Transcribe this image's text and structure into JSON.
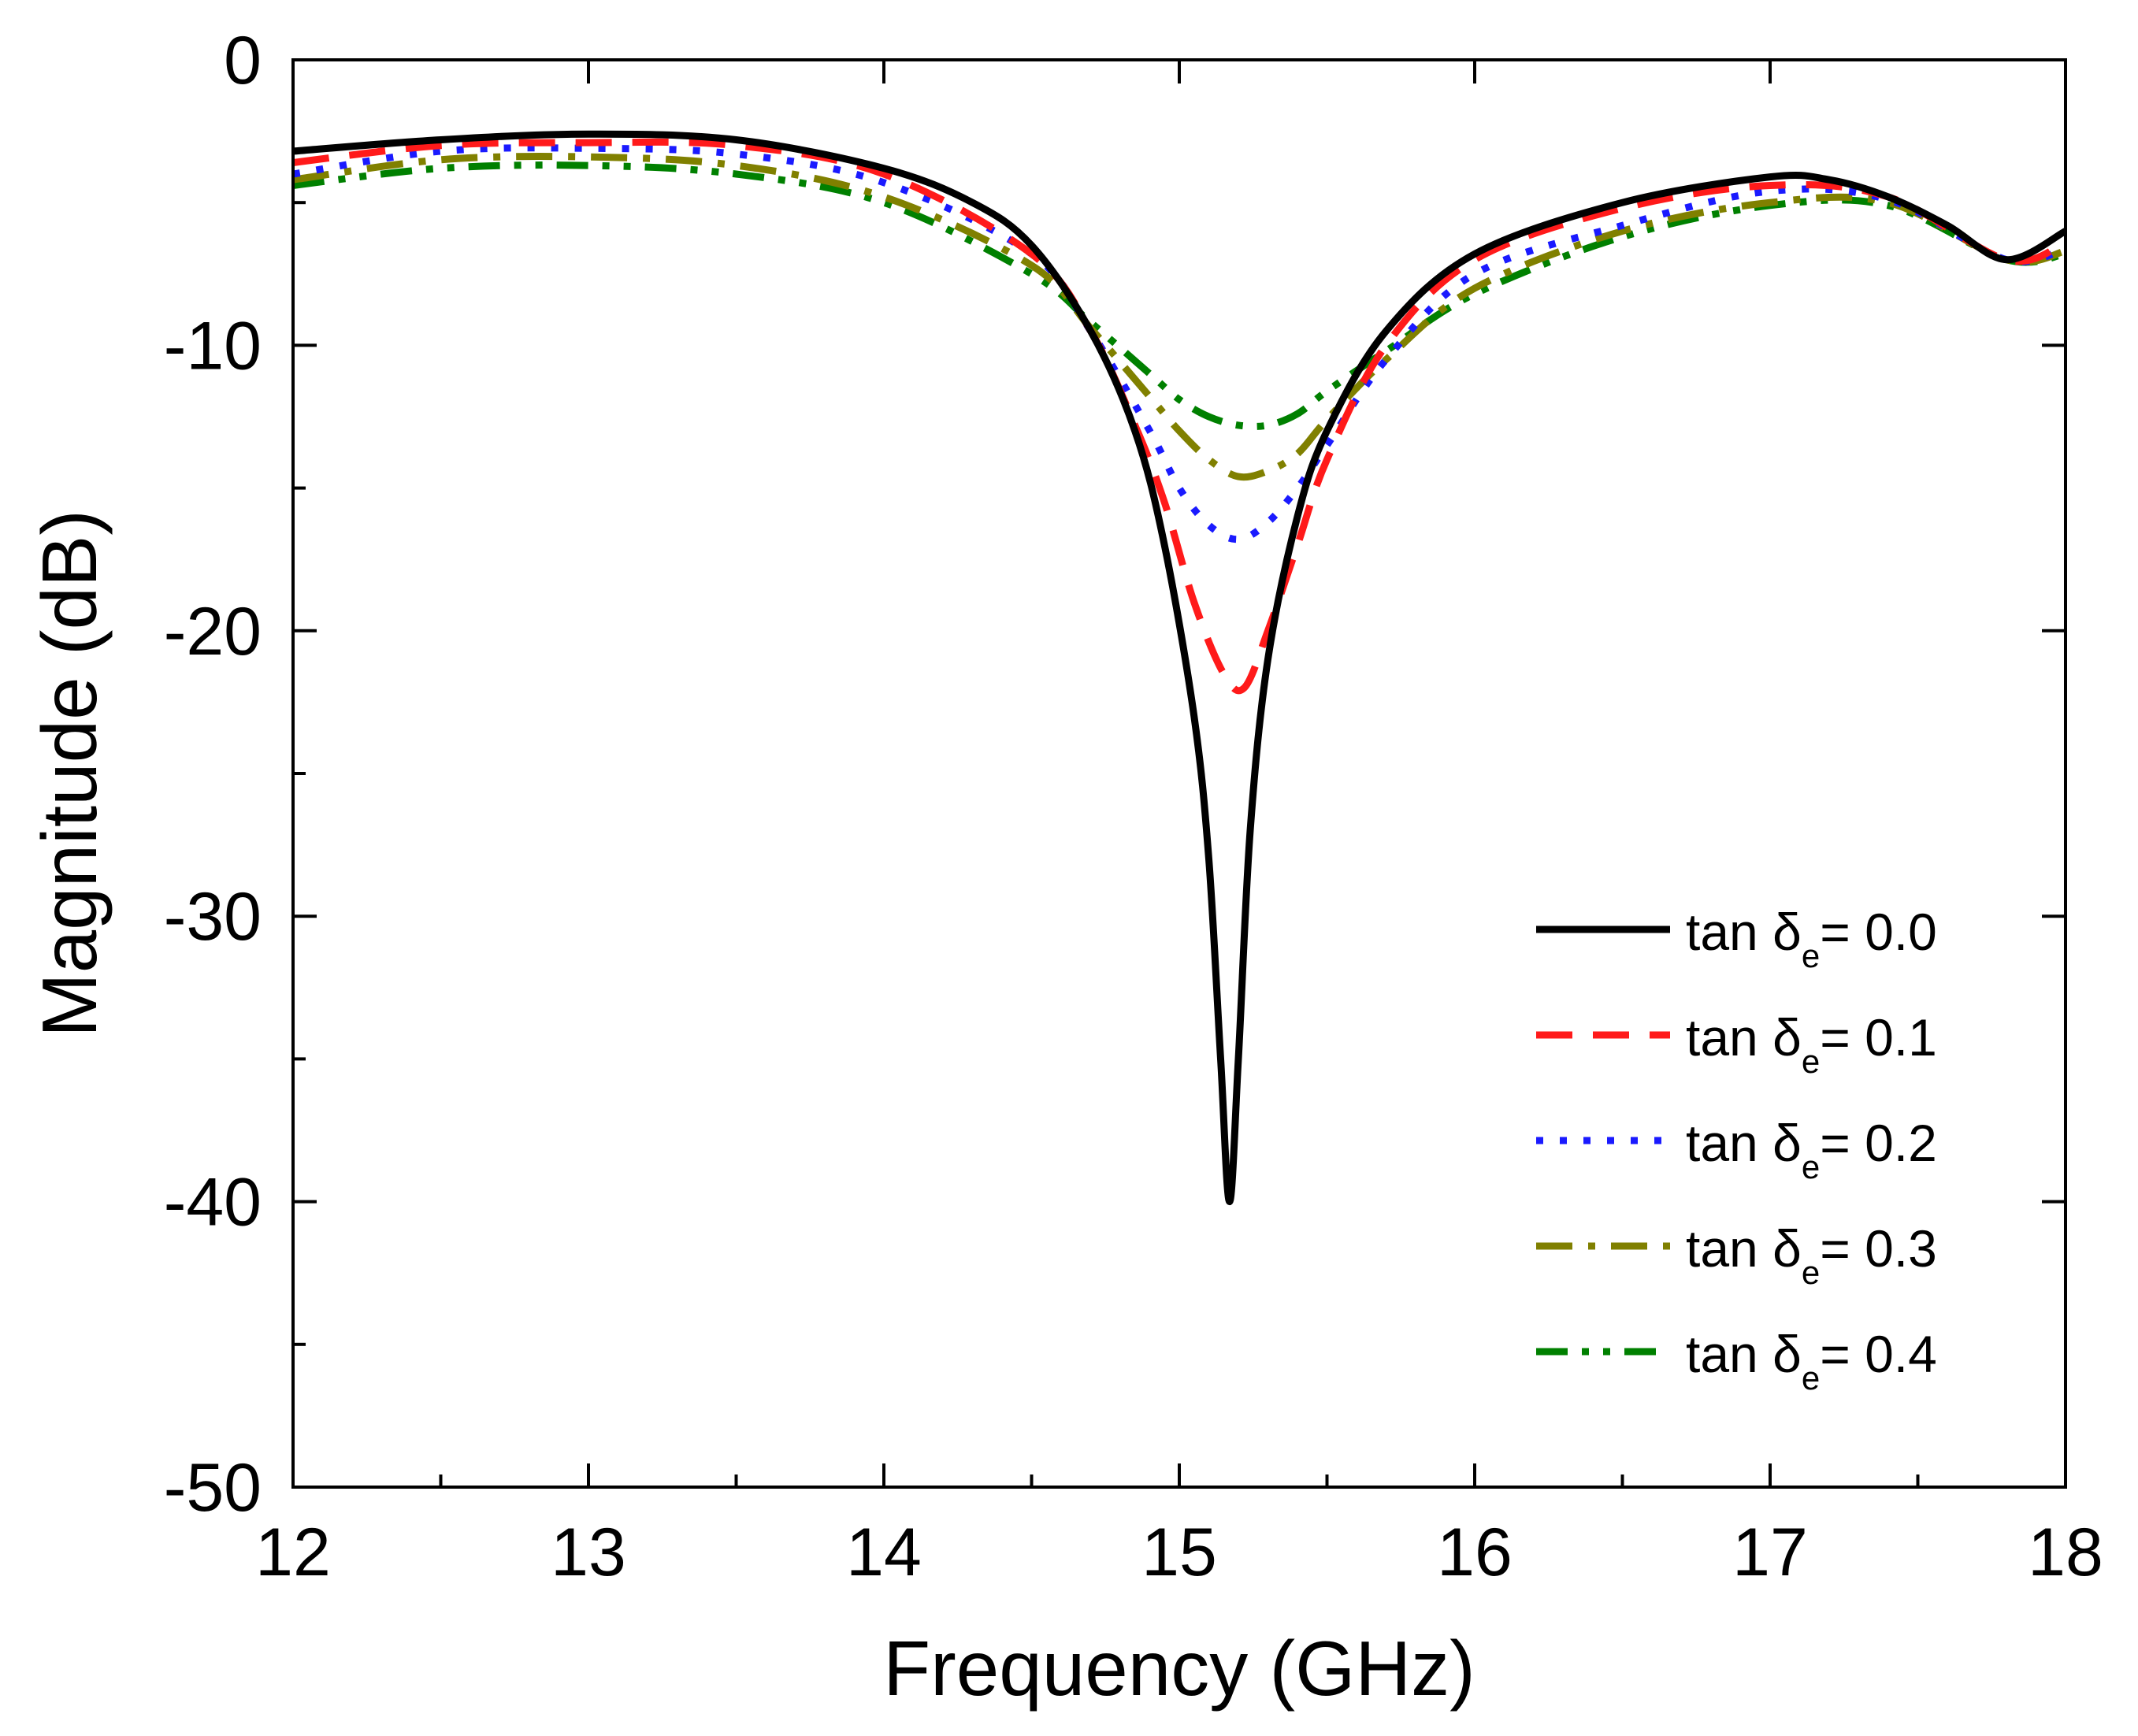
{
  "chart_data": {
    "type": "line",
    "title": "",
    "xlabel": "Frequency (GHz)",
    "ylabel": "Magnitude (dB)",
    "xlim": [
      12,
      18
    ],
    "ylim": [
      -50,
      0
    ],
    "xticks": [
      12,
      13,
      14,
      15,
      16,
      17,
      18
    ],
    "yticks": [
      0,
      -10,
      -20,
      -30,
      -40,
      -50
    ],
    "xtick_labels": [
      "12",
      "13",
      "14",
      "15",
      "16",
      "17",
      "18"
    ],
    "ytick_labels": [
      "0",
      "-10",
      "-20",
      "-30",
      "-40",
      "-50"
    ],
    "grid": false,
    "legend_position": "bottom-right",
    "series": [
      {
        "name": "tan δe= 0.0",
        "label_main": "tan δ",
        "label_sub": "e",
        "label_value": "= 0.0",
        "color": "#000000",
        "style": "solid",
        "x": [
          12.0,
          12.5,
          13.0,
          13.5,
          14.0,
          14.3,
          14.5,
          14.7,
          14.85,
          14.95,
          15.05,
          15.1,
          15.14,
          15.17,
          15.2,
          15.24,
          15.3,
          15.4,
          15.5,
          15.7,
          16.0,
          16.5,
          17.0,
          17.2,
          17.4,
          17.6,
          17.8,
          18.0
        ],
        "y": [
          -3.2,
          -2.8,
          -2.6,
          -2.8,
          -3.8,
          -5.0,
          -6.5,
          -9.5,
          -13.0,
          -17.0,
          -23.0,
          -28.0,
          -35.0,
          -40.0,
          -35.0,
          -27.0,
          -21.0,
          -16.0,
          -13.0,
          -9.5,
          -6.8,
          -5.0,
          -4.1,
          -4.2,
          -4.8,
          -5.8,
          -7.0,
          -6.0
        ]
      },
      {
        "name": "tan δe= 0.1",
        "label_main": "tan δ",
        "label_sub": "e",
        "label_value": "= 0.1",
        "color": "#ff1a1a",
        "style": "dashed",
        "x": [
          12.0,
          12.5,
          13.0,
          13.5,
          14.0,
          14.5,
          14.7,
          14.85,
          14.95,
          15.05,
          15.15,
          15.22,
          15.3,
          15.4,
          15.5,
          15.7,
          16.0,
          16.5,
          17.0,
          17.4,
          17.8,
          18.0
        ],
        "y": [
          -3.6,
          -3.0,
          -2.9,
          -3.0,
          -4.0,
          -6.8,
          -9.5,
          -12.8,
          -15.5,
          -19.0,
          -21.5,
          -22.0,
          -20.0,
          -17.0,
          -14.0,
          -10.0,
          -7.0,
          -5.2,
          -4.4,
          -4.8,
          -7.0,
          -6.4
        ]
      },
      {
        "name": "tan δe= 0.2",
        "label_main": "tan δ",
        "label_sub": "e",
        "label_value": "= 0.2",
        "color": "#1a1aff",
        "style": "dotted",
        "x": [
          12.0,
          12.5,
          13.0,
          13.5,
          14.0,
          14.5,
          14.7,
          14.9,
          15.0,
          15.1,
          15.2,
          15.3,
          15.4,
          15.5,
          15.7,
          16.0,
          16.5,
          17.0,
          17.4,
          17.8,
          18.0
        ],
        "y": [
          -4.0,
          -3.2,
          -3.1,
          -3.3,
          -4.3,
          -6.8,
          -9.5,
          -13.0,
          -15.0,
          -16.3,
          -16.8,
          -16.2,
          -15.0,
          -13.5,
          -10.5,
          -7.5,
          -5.8,
          -4.6,
          -4.9,
          -7.0,
          -6.6
        ]
      },
      {
        "name": "tan δe= 0.3",
        "label_main": "tan δ",
        "label_sub": "e",
        "label_value": "= 0.3",
        "color": "#808000",
        "style": "dashdot",
        "x": [
          12.0,
          12.5,
          13.0,
          13.5,
          14.0,
          14.5,
          14.7,
          14.9,
          15.0,
          15.1,
          15.2,
          15.3,
          15.4,
          15.5,
          15.7,
          16.0,
          16.5,
          17.0,
          17.4,
          17.8,
          18.0
        ],
        "y": [
          -4.2,
          -3.5,
          -3.4,
          -3.7,
          -4.8,
          -7.2,
          -9.4,
          -11.8,
          -13.0,
          -14.0,
          -14.6,
          -14.4,
          -13.8,
          -12.6,
          -10.5,
          -8.0,
          -6.0,
          -5.0,
          -5.0,
          -7.0,
          -6.7
        ]
      },
      {
        "name": "tan δe= 0.4",
        "label_main": "tan δ",
        "label_sub": "e",
        "label_value": "= 0.4",
        "color": "#008000",
        "style": "dashdotdot",
        "x": [
          12.0,
          12.5,
          13.0,
          13.5,
          14.0,
          14.5,
          14.7,
          14.9,
          15.0,
          15.1,
          15.2,
          15.3,
          15.4,
          15.5,
          15.7,
          16.0,
          16.5,
          17.0,
          17.4,
          17.8,
          18.0
        ],
        "y": [
          -4.4,
          -3.8,
          -3.7,
          -4.0,
          -5.0,
          -7.5,
          -9.2,
          -11.0,
          -11.9,
          -12.5,
          -12.8,
          -12.8,
          -12.4,
          -11.6,
          -10.2,
          -8.2,
          -6.2,
          -5.1,
          -5.1,
          -7.0,
          -6.8
        ]
      }
    ]
  }
}
